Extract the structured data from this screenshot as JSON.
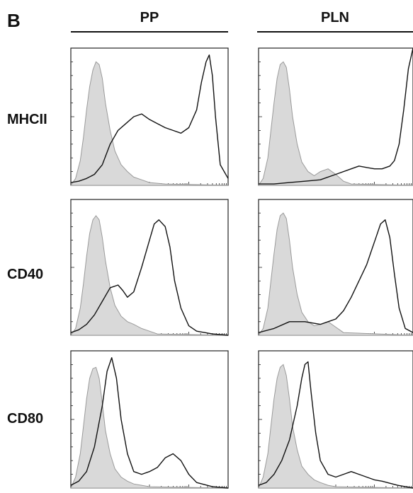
{
  "figure": {
    "panel_letter": "B",
    "columns": [
      "PP",
      "PLN"
    ],
    "rows": [
      "MHCII",
      "CD40",
      "CD80"
    ]
  },
  "colors": {
    "isotype_fill": "#d9d9d9",
    "isotype_stroke": "#9a9a9a",
    "stain_stroke": "#111111"
  },
  "chart_data": [
    {
      "type": "area",
      "row": "MHCII",
      "column": "PP",
      "x_scale": "log",
      "ticks": "unlabeled",
      "series": [
        {
          "role": "isotype",
          "x": [
            0,
            0.03,
            0.06,
            0.08,
            0.1,
            0.12,
            0.14,
            0.16,
            0.18,
            0.2,
            0.22,
            0.25,
            0.28,
            0.32,
            0.36,
            0.4,
            0.45,
            0.5,
            0.6,
            1
          ],
          "y": [
            0,
            0.05,
            0.18,
            0.35,
            0.55,
            0.72,
            0.84,
            0.9,
            0.88,
            0.78,
            0.6,
            0.4,
            0.25,
            0.15,
            0.1,
            0.06,
            0.04,
            0.02,
            0.01,
            0
          ]
        },
        {
          "role": "stained",
          "x": [
            0,
            0.05,
            0.1,
            0.15,
            0.2,
            0.25,
            0.3,
            0.35,
            0.4,
            0.45,
            0.5,
            0.55,
            0.6,
            0.65,
            0.7,
            0.75,
            0.8,
            0.83,
            0.86,
            0.88,
            0.9,
            0.92,
            0.95,
            1
          ],
          "y": [
            0.02,
            0.03,
            0.05,
            0.08,
            0.15,
            0.3,
            0.4,
            0.45,
            0.5,
            0.52,
            0.48,
            0.45,
            0.42,
            0.4,
            0.38,
            0.42,
            0.55,
            0.75,
            0.9,
            0.95,
            0.8,
            0.5,
            0.15,
            0.05
          ]
        }
      ]
    },
    {
      "type": "area",
      "row": "MHCII",
      "column": "PLN",
      "x_scale": "log",
      "ticks": "unlabeled",
      "series": [
        {
          "role": "isotype",
          "x": [
            0,
            0.03,
            0.06,
            0.08,
            0.1,
            0.12,
            0.14,
            0.16,
            0.18,
            0.2,
            0.22,
            0.25,
            0.28,
            0.32,
            0.36,
            0.4,
            0.45,
            0.5,
            0.55,
            0.6,
            1
          ],
          "y": [
            0,
            0.05,
            0.2,
            0.4,
            0.6,
            0.78,
            0.88,
            0.9,
            0.86,
            0.7,
            0.5,
            0.3,
            0.17,
            0.1,
            0.07,
            0.1,
            0.12,
            0.08,
            0.03,
            0.01,
            0
          ]
        },
        {
          "role": "stained",
          "x": [
            0,
            0.1,
            0.2,
            0.3,
            0.4,
            0.5,
            0.6,
            0.65,
            0.7,
            0.75,
            0.8,
            0.85,
            0.88,
            0.91,
            0.94,
            0.97,
            1
          ],
          "y": [
            0.01,
            0.01,
            0.02,
            0.03,
            0.04,
            0.08,
            0.12,
            0.14,
            0.13,
            0.12,
            0.12,
            0.14,
            0.18,
            0.3,
            0.55,
            0.85,
            1.0
          ]
        }
      ]
    },
    {
      "type": "area",
      "row": "CD40",
      "column": "PP",
      "x_scale": "log",
      "ticks": "unlabeled",
      "series": [
        {
          "role": "isotype",
          "x": [
            0,
            0.03,
            0.06,
            0.08,
            0.1,
            0.12,
            0.14,
            0.16,
            0.18,
            0.2,
            0.22,
            0.25,
            0.28,
            0.32,
            0.36,
            0.4,
            0.45,
            0.5,
            0.55,
            1
          ],
          "y": [
            0,
            0.05,
            0.2,
            0.38,
            0.58,
            0.75,
            0.85,
            0.88,
            0.85,
            0.72,
            0.55,
            0.35,
            0.22,
            0.14,
            0.1,
            0.08,
            0.05,
            0.03,
            0.01,
            0
          ]
        },
        {
          "role": "stained",
          "x": [
            0,
            0.05,
            0.1,
            0.15,
            0.2,
            0.25,
            0.3,
            0.33,
            0.36,
            0.4,
            0.45,
            0.5,
            0.53,
            0.56,
            0.6,
            0.63,
            0.66,
            0.7,
            0.75,
            0.8,
            0.9,
            1
          ],
          "y": [
            0.02,
            0.04,
            0.08,
            0.15,
            0.25,
            0.35,
            0.37,
            0.33,
            0.28,
            0.32,
            0.5,
            0.7,
            0.82,
            0.85,
            0.8,
            0.65,
            0.4,
            0.2,
            0.07,
            0.03,
            0.01,
            0
          ]
        }
      ]
    },
    {
      "type": "area",
      "row": "CD40",
      "column": "PLN",
      "x_scale": "log",
      "ticks": "unlabeled",
      "series": [
        {
          "role": "isotype",
          "x": [
            0,
            0.03,
            0.06,
            0.08,
            0.1,
            0.12,
            0.14,
            0.16,
            0.18,
            0.2,
            0.22,
            0.25,
            0.28,
            0.32,
            0.36,
            0.4,
            0.45,
            0.5,
            0.55,
            1
          ],
          "y": [
            0,
            0.05,
            0.2,
            0.4,
            0.6,
            0.78,
            0.88,
            0.9,
            0.86,
            0.7,
            0.5,
            0.3,
            0.17,
            0.1,
            0.07,
            0.08,
            0.1,
            0.06,
            0.02,
            0
          ]
        },
        {
          "role": "stained",
          "x": [
            0,
            0.1,
            0.2,
            0.3,
            0.4,
            0.45,
            0.5,
            0.55,
            0.6,
            0.65,
            0.7,
            0.73,
            0.76,
            0.79,
            0.82,
            0.85,
            0.88,
            0.91,
            0.95,
            1
          ],
          "y": [
            0.02,
            0.05,
            0.1,
            0.1,
            0.08,
            0.1,
            0.12,
            0.18,
            0.28,
            0.4,
            0.52,
            0.62,
            0.72,
            0.82,
            0.85,
            0.72,
            0.45,
            0.2,
            0.05,
            0.02
          ]
        }
      ]
    },
    {
      "type": "area",
      "row": "CD80",
      "column": "PP",
      "x_scale": "log",
      "ticks": "unlabeled",
      "series": [
        {
          "role": "isotype",
          "x": [
            0,
            0.03,
            0.06,
            0.08,
            0.1,
            0.12,
            0.14,
            0.16,
            0.18,
            0.2,
            0.22,
            0.25,
            0.28,
            0.32,
            0.36,
            0.4,
            0.45,
            0.5,
            1
          ],
          "y": [
            0,
            0.08,
            0.25,
            0.45,
            0.65,
            0.8,
            0.87,
            0.88,
            0.8,
            0.62,
            0.42,
            0.25,
            0.14,
            0.08,
            0.05,
            0.03,
            0.02,
            0.01,
            0
          ]
        },
        {
          "role": "stained",
          "x": [
            0,
            0.05,
            0.1,
            0.15,
            0.2,
            0.23,
            0.26,
            0.29,
            0.32,
            0.36,
            0.4,
            0.45,
            0.5,
            0.55,
            0.6,
            0.65,
            0.7,
            0.75,
            0.8,
            0.9,
            1
          ],
          "y": [
            0.02,
            0.05,
            0.12,
            0.3,
            0.6,
            0.85,
            0.95,
            0.8,
            0.5,
            0.25,
            0.12,
            0.1,
            0.12,
            0.15,
            0.22,
            0.25,
            0.2,
            0.1,
            0.04,
            0.01,
            0
          ]
        }
      ]
    },
    {
      "type": "area",
      "row": "CD80",
      "column": "PLN",
      "x_scale": "log",
      "ticks": "unlabeled",
      "series": [
        {
          "role": "isotype",
          "x": [
            0,
            0.03,
            0.06,
            0.08,
            0.1,
            0.12,
            0.14,
            0.16,
            0.18,
            0.2,
            0.22,
            0.25,
            0.28,
            0.32,
            0.36,
            0.4,
            0.45,
            0.5,
            1
          ],
          "y": [
            0,
            0.08,
            0.25,
            0.45,
            0.65,
            0.8,
            0.88,
            0.9,
            0.82,
            0.65,
            0.45,
            0.28,
            0.16,
            0.1,
            0.06,
            0.04,
            0.02,
            0.01,
            0
          ]
        },
        {
          "role": "stained",
          "x": [
            0,
            0.05,
            0.1,
            0.15,
            0.2,
            0.25,
            0.28,
            0.3,
            0.32,
            0.34,
            0.37,
            0.4,
            0.45,
            0.5,
            0.55,
            0.6,
            0.65,
            0.7,
            0.75,
            0.8,
            0.9,
            1
          ],
          "y": [
            0.02,
            0.04,
            0.1,
            0.2,
            0.35,
            0.6,
            0.8,
            0.9,
            0.92,
            0.7,
            0.4,
            0.2,
            0.1,
            0.08,
            0.1,
            0.12,
            0.1,
            0.08,
            0.06,
            0.05,
            0.02,
            0
          ]
        }
      ]
    }
  ]
}
